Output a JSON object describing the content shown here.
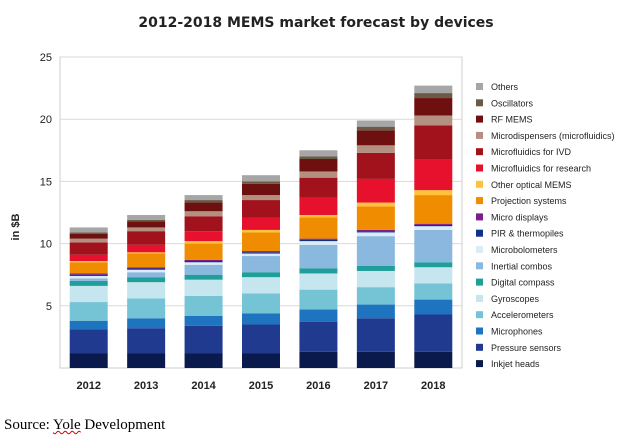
{
  "chart_data": {
    "type": "bar",
    "stacked": true,
    "title": "2012-2018 MEMS market forecast by devices",
    "xlabel": "",
    "ylabel": "in $B",
    "ylim": [
      0,
      25
    ],
    "yticks": [
      0,
      5,
      10,
      15,
      20,
      25
    ],
    "grid": true,
    "legend_position": "right",
    "categories": [
      "2012",
      "2013",
      "2014",
      "2015",
      "2016",
      "2017",
      "2018"
    ],
    "series": [
      {
        "name": "Inkjet heads",
        "color": "#0b1a4d",
        "values": [
          1.2,
          1.2,
          1.2,
          1.2,
          1.3,
          1.3,
          1.3
        ]
      },
      {
        "name": "Pressure sensors",
        "color": "#1f3a8f",
        "values": [
          1.9,
          2.0,
          2.2,
          2.3,
          2.4,
          2.7,
          3.0
        ]
      },
      {
        "name": "Microphones",
        "color": "#1f74c0",
        "values": [
          0.7,
          0.8,
          0.8,
          0.9,
          1.0,
          1.1,
          1.2
        ]
      },
      {
        "name": "Accelerometers",
        "color": "#74c4d6",
        "values": [
          1.5,
          1.6,
          1.6,
          1.6,
          1.6,
          1.4,
          1.3
        ]
      },
      {
        "name": "Gyroscopes",
        "color": "#c5e6ee",
        "values": [
          1.3,
          1.3,
          1.3,
          1.3,
          1.3,
          1.3,
          1.3
        ]
      },
      {
        "name": "Digital compass",
        "color": "#1f9e9a",
        "values": [
          0.4,
          0.4,
          0.4,
          0.4,
          0.4,
          0.4,
          0.4
        ]
      },
      {
        "name": "Inertial combos",
        "color": "#8ab8de",
        "values": [
          0.2,
          0.4,
          0.8,
          1.3,
          1.9,
          2.4,
          2.6
        ]
      },
      {
        "name": "Microbolometers",
        "color": "#dcecf6",
        "values": [
          0.2,
          0.2,
          0.2,
          0.2,
          0.3,
          0.3,
          0.3
        ]
      },
      {
        "name": "PIR & thermopiles",
        "color": "#0f2f8c",
        "values": [
          0.1,
          0.1,
          0.1,
          0.1,
          0.1,
          0.1,
          0.1
        ]
      },
      {
        "name": "Micro displays",
        "color": "#7b1f8c",
        "values": [
          0.1,
          0.1,
          0.1,
          0.1,
          0.1,
          0.1,
          0.1
        ]
      },
      {
        "name": "Projection systems",
        "color": "#f08c00",
        "values": [
          0.9,
          1.1,
          1.3,
          1.5,
          1.7,
          1.9,
          2.3
        ]
      },
      {
        "name": "Other optical MEMS",
        "color": "#ffc23c",
        "values": [
          0.1,
          0.1,
          0.2,
          0.2,
          0.2,
          0.3,
          0.4
        ]
      },
      {
        "name": "Microfluidics for research",
        "color": "#e8112d",
        "values": [
          0.5,
          0.6,
          0.8,
          1.0,
          1.4,
          1.9,
          2.5
        ]
      },
      {
        "name": "Microfluidics for IVD",
        "color": "#a1121c",
        "values": [
          1.0,
          1.1,
          1.2,
          1.4,
          1.6,
          2.1,
          2.7
        ]
      },
      {
        "name": "Microdispensers (microfluidics)",
        "color": "#b39080",
        "values": [
          0.3,
          0.3,
          0.4,
          0.4,
          0.5,
          0.6,
          0.8
        ]
      },
      {
        "name": "RF MEMS",
        "color": "#6e1010",
        "values": [
          0.4,
          0.5,
          0.7,
          0.9,
          1.0,
          1.2,
          1.4
        ]
      },
      {
        "name": "Oscillators",
        "color": "#6b5a46",
        "values": [
          0.1,
          0.1,
          0.2,
          0.2,
          0.2,
          0.3,
          0.4
        ]
      },
      {
        "name": "Others",
        "color": "#a6a6a6",
        "values": [
          0.4,
          0.4,
          0.4,
          0.5,
          0.5,
          0.5,
          0.6
        ]
      }
    ]
  },
  "source": {
    "prefix": "Source: ",
    "brand": "Yole",
    "suffix": " Development"
  }
}
